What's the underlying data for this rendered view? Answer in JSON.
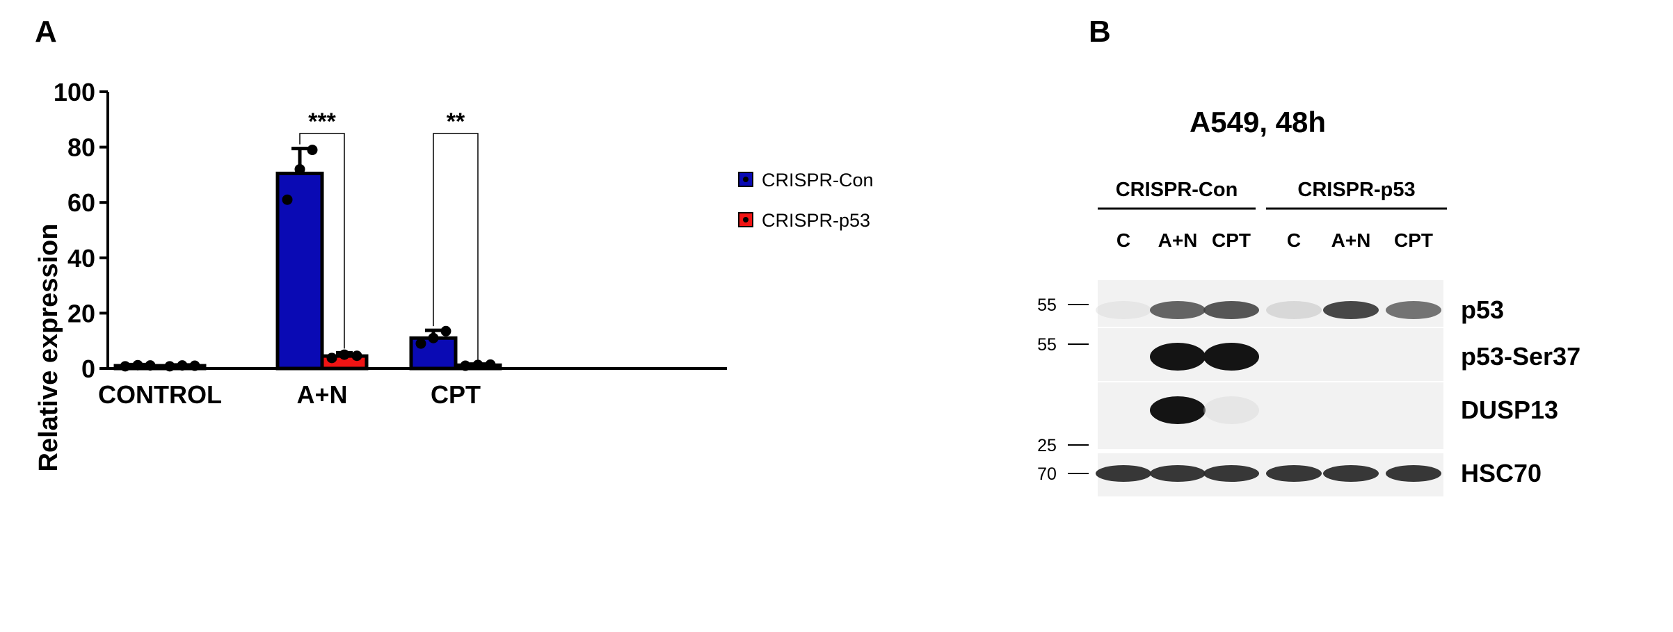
{
  "panel_a": {
    "letter": "A"
  },
  "panel_b": {
    "letter": "B"
  },
  "chart_data": {
    "type": "bar",
    "title": "",
    "xlabel": "",
    "ylabel": "Relative expression",
    "ylim": [
      0,
      100
    ],
    "yticks": [
      "0",
      "20",
      "40",
      "60",
      "80",
      "100"
    ],
    "categories": [
      "CONTROL",
      "A+N",
      "CPT"
    ],
    "legend_position": "top-right",
    "series": [
      {
        "name": "CRISPR-Con",
        "color": "#0a0ab4",
        "values": [
          1.0,
          70.5,
          11.0
        ],
        "errors": [
          0.4,
          9.0,
          2.8
        ],
        "points": [
          [
            0.8,
            1.2,
            1.1
          ],
          [
            61,
            72,
            79
          ],
          [
            9,
            11,
            13.5
          ]
        ]
      },
      {
        "name": "CRISPR-p53",
        "color": "#f01414",
        "values": [
          1.0,
          4.5,
          1.2
        ],
        "errors": [
          0.3,
          1.2,
          0.4
        ],
        "points": [
          [
            0.8,
            1.1,
            1.0
          ],
          [
            3.8,
            5.0,
            4.6
          ],
          [
            1.0,
            1.3,
            1.4
          ]
        ]
      }
    ],
    "significance": [
      {
        "category": "A+N",
        "label": "***"
      },
      {
        "category": "CPT",
        "label": "**"
      }
    ]
  },
  "blot": {
    "title": "A549, 48h",
    "groups": [
      {
        "label": "CRISPR-Con",
        "lanes": [
          "C",
          "A+N",
          "CPT"
        ]
      },
      {
        "label": "CRISPR-p53",
        "lanes": [
          "C",
          "A+N",
          "CPT"
        ]
      }
    ],
    "rows": [
      {
        "label": "p53",
        "markers": [
          "55"
        ],
        "intensity": [
          0.08,
          0.75,
          0.8,
          0.2,
          0.85,
          0.7
        ]
      },
      {
        "label": "p53-Ser37",
        "markers": [
          "55"
        ],
        "intensity": [
          0,
          1.0,
          1.0,
          0,
          0,
          0
        ]
      },
      {
        "label": "DUSP13",
        "markers": [
          "25"
        ],
        "intensity": [
          0,
          1.0,
          0.08,
          0,
          0,
          0
        ]
      },
      {
        "label": "HSC70",
        "markers": [
          "70"
        ],
        "intensity": [
          0.9,
          0.9,
          0.9,
          0.9,
          0.9,
          0.9
        ]
      }
    ]
  }
}
